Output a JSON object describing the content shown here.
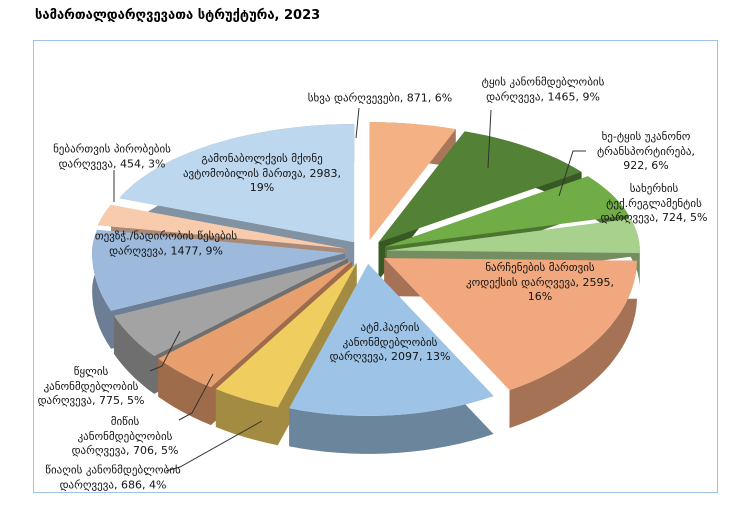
{
  "title": "სამართალდარღვევათა სტრუქტურა, 2023",
  "chart_data": {
    "type": "pie",
    "style": "3d-exploded-pie",
    "title": "სამართალდარღვევათა სტრუქტურა, 2023",
    "direction": "clockwise",
    "start_angle_deg": 0,
    "legend_position": "none",
    "label_position": "mixed-inside-and-outside-with-leader-lines",
    "label_format": "{name}, {value}, {percent}%",
    "frame_border_color": "#9DC3E6",
    "leader_line_color": "#333333",
    "slices": [
      {
        "name": "სხვა დარღვევები",
        "value": 871,
        "percent": 6,
        "color": "#F4B183"
      },
      {
        "name": "ტყის კანონმდებლობის დარღვევა",
        "value": 1465,
        "percent": 9,
        "color": "#538135"
      },
      {
        "name": "ხე-ტყის უკანონო ტრანსპორტირება",
        "value": 922,
        "percent": 6,
        "color": "#70AD47"
      },
      {
        "name": "სახერხის ტექ.რეგლამენტის დარღვევა",
        "value": 724,
        "percent": 5,
        "color": "#A9D18E"
      },
      {
        "name": "ნარჩენების მართვის კოდექსის დარღვევა",
        "value": 2595,
        "percent": 16,
        "color": "#F2A87E"
      },
      {
        "name": "ატმ.ჰაერის კანონმდებლობის დარღვევა",
        "value": 2097,
        "percent": 13,
        "color": "#9DC3E6"
      },
      {
        "name": "წიაღის კანონმდებლობის დარღვევა",
        "value": 686,
        "percent": 4,
        "color": "#EFCE5F"
      },
      {
        "name": "მიწის კანონმდებლობის დარღვევა",
        "value": 706,
        "percent": 5,
        "color": "#E89F6E"
      },
      {
        "name": "წყლის კანონმდებლობის დარღვევა",
        "value": 775,
        "percent": 5,
        "color": "#A3A3A3"
      },
      {
        "name": "თევზჭ./ნადირობის წესების დარღვევა",
        "value": 1477,
        "percent": 9,
        "color": "#9DB9DC"
      },
      {
        "name": "ნებართვის პირობების დარღვევა",
        "value": 454,
        "percent": 3,
        "color": "#F8CBAD"
      },
      {
        "name": "გამონაბოლქვის მქონე ავტომობილის მართვა",
        "value": 2983,
        "percent": 19,
        "color": "#BDD7EE"
      }
    ]
  }
}
